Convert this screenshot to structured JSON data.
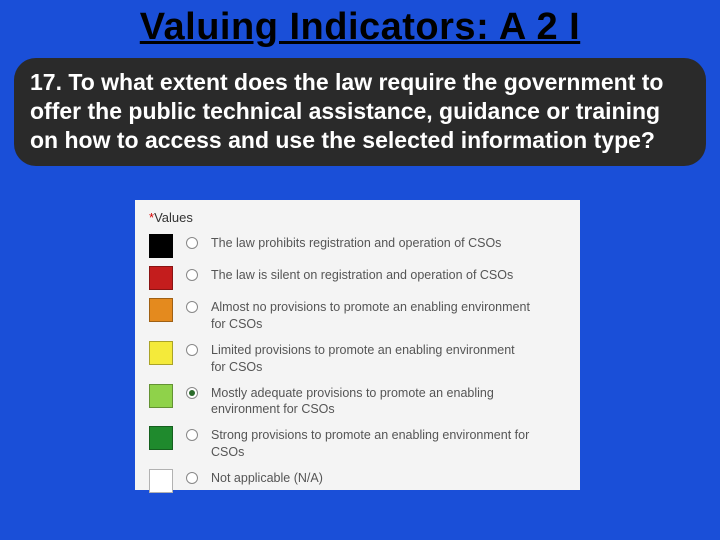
{
  "title": "Valuing Indicators: A 2 I",
  "question": "17. To what extent does the law require the government to offer the public technical assistance, guidance or training on how to access and use the selected information type?",
  "panel": {
    "required_mark": "*",
    "header_label": "Values",
    "options": [
      {
        "swatch_color": "#000000",
        "label": "The law prohibits registration and operation of CSOs",
        "selected": false
      },
      {
        "swatch_color": "#c41d1d",
        "label": "The law is silent on registration and operation of CSOs",
        "selected": false
      },
      {
        "swatch_color": "#e48a1e",
        "label": "Almost no provisions to promote an enabling environment for CSOs",
        "selected": false
      },
      {
        "swatch_color": "#f4ea3a",
        "label": "Limited provisions to promote an enabling environment for CSOs",
        "selected": false
      },
      {
        "swatch_color": "#8fd24a",
        "label": "Mostly adequate provisions to promote an enabling environment for CSOs",
        "selected": true
      },
      {
        "swatch_color": "#1f8a2d",
        "label": "Strong provisions to promote an enabling environment for CSOs",
        "selected": false
      },
      {
        "swatch_color": "#ffffff",
        "label": "Not applicable (N/A)",
        "selected": false
      }
    ]
  },
  "colors": {
    "page_bg": "#1a4fd8",
    "question_bg": "#2a2a2a",
    "question_fg": "#ffffff",
    "panel_bg": "#f4f4f4",
    "title_color": "#000000"
  }
}
